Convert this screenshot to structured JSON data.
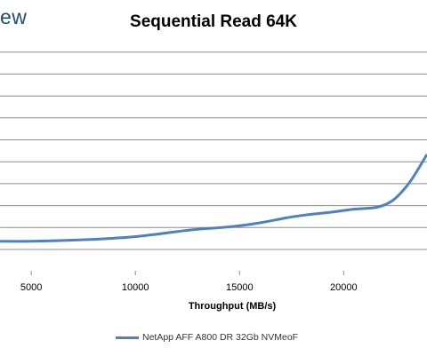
{
  "watermark": "ew",
  "chart_data": {
    "type": "line",
    "title": "Sequential Read 64K",
    "xlabel": "Throughput (MB/s)",
    "ylabel": "",
    "xlim": [
      3500,
      24000
    ],
    "x_ticks": [
      "5000",
      "10000",
      "15000",
      "20000"
    ],
    "grid": true,
    "legend_position": "bottom",
    "series": [
      {
        "name": "NetApp AFF A800 DR 32Gb NVMeoF",
        "color": "#4f81bd",
        "points": [
          [
            3500,
            0.5
          ],
          [
            5000,
            0.5
          ],
          [
            6500,
            0.52
          ],
          [
            8000,
            0.55
          ],
          [
            9000,
            0.58
          ],
          [
            10000,
            0.62
          ],
          [
            11000,
            0.68
          ],
          [
            12000,
            0.75
          ],
          [
            13000,
            0.81
          ],
          [
            14000,
            0.85
          ],
          [
            15000,
            0.9
          ],
          [
            16000,
            0.98
          ],
          [
            17000,
            1.08
          ],
          [
            17500,
            1.13
          ],
          [
            18500,
            1.2
          ],
          [
            19500,
            1.26
          ],
          [
            20500,
            1.33
          ],
          [
            21500,
            1.37
          ],
          [
            22000,
            1.45
          ],
          [
            22500,
            1.62
          ],
          [
            23200,
            2.05
          ],
          [
            24000,
            2.75
          ]
        ]
      }
    ]
  }
}
